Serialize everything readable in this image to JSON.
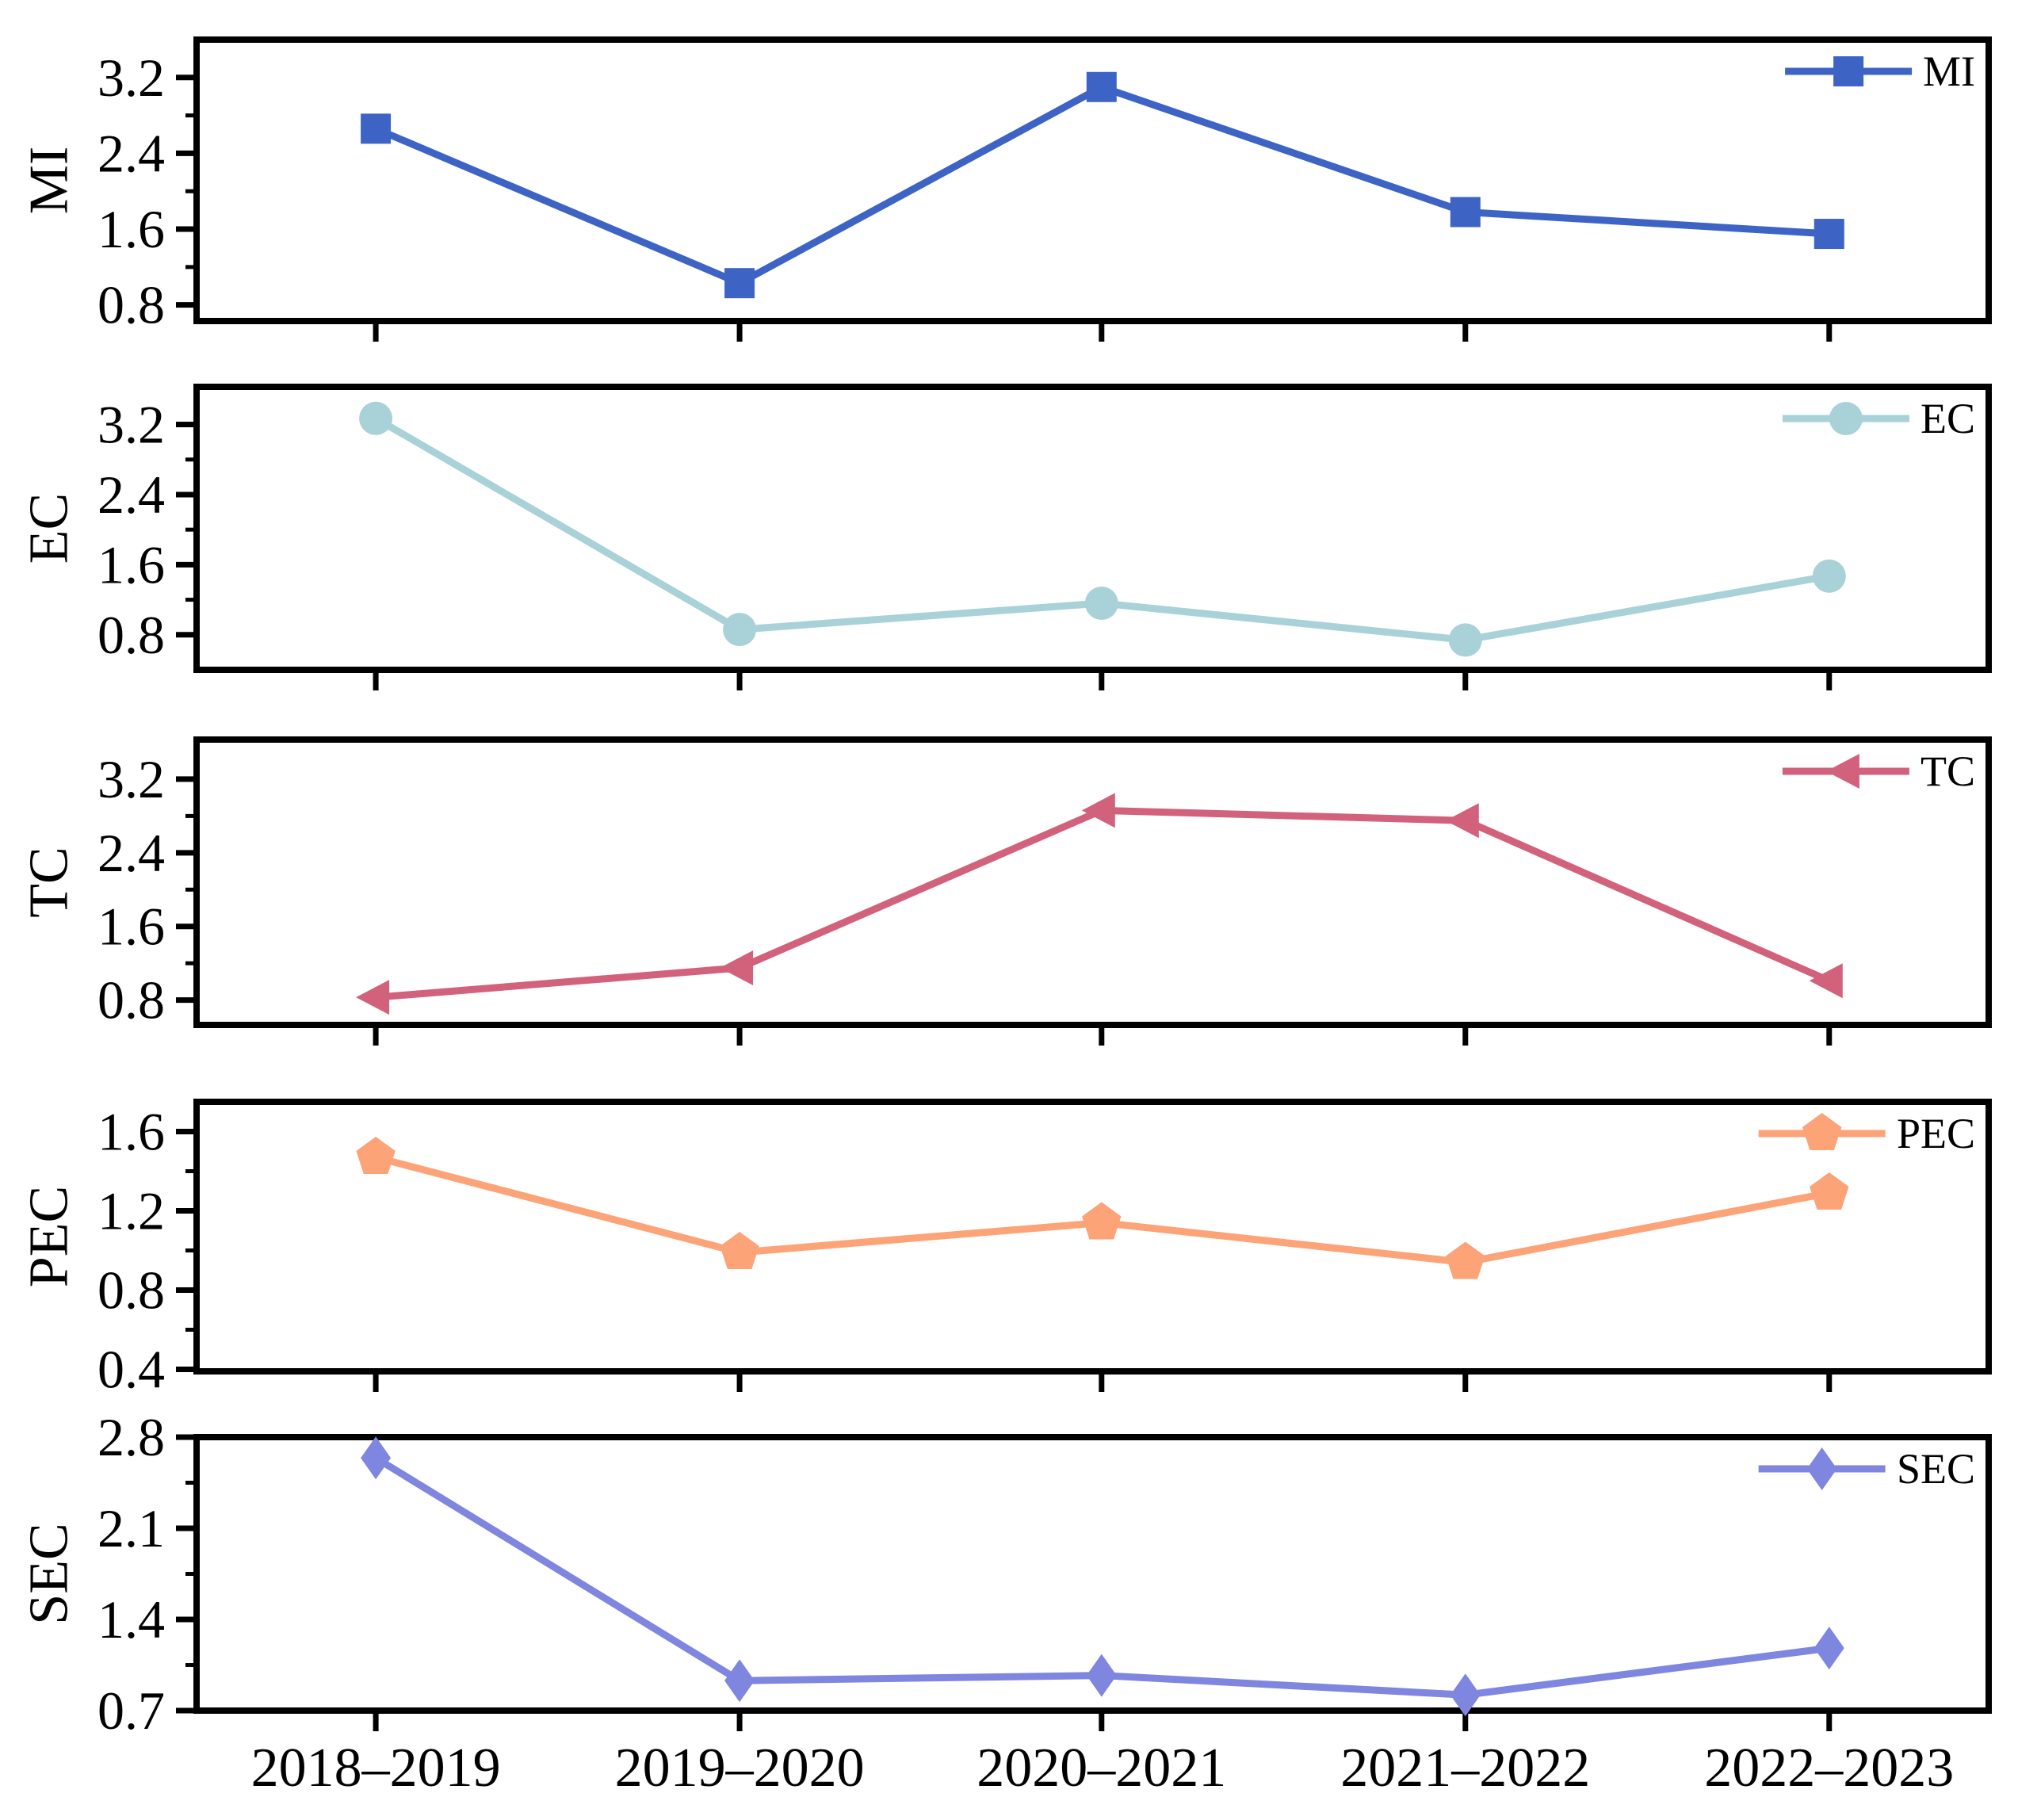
{
  "chart_data": {
    "type": "line",
    "title": "",
    "xlabel": "",
    "x_categories": [
      "2018–2019",
      "2019–2020",
      "2020–2021",
      "2021–2022",
      "2022–2023"
    ],
    "x_tick_labels_shown": "bottom_panel_only",
    "grid": "off",
    "axis_color": "#000000",
    "background_color": "#ffffff",
    "legend_position": "top-right-inside",
    "panels": [
      {
        "name": "MI",
        "ylabel": "MI",
        "legend_label": "MI",
        "marker": "square",
        "color": "#3d63c5",
        "values": [
          2.66,
          1.03,
          3.1,
          1.78,
          1.55
        ],
        "ylim": [
          0.63,
          3.6
        ],
        "yticks": [
          0.8,
          1.6,
          2.4,
          3.2
        ],
        "ytick_labels": [
          "0.8",
          "1.6",
          "2.4",
          "3.2"
        ],
        "yticks_minor": [
          1.2,
          2.0,
          2.8
        ]
      },
      {
        "name": "EC",
        "ylabel": "EC",
        "legend_label": "EC",
        "marker": "circle",
        "color": "#a9d1d8",
        "values": [
          3.27,
          0.86,
          1.16,
          0.74,
          1.47
        ],
        "ylim": [
          0.4,
          3.63
        ],
        "yticks": [
          0.8,
          1.6,
          2.4,
          3.2
        ],
        "ytick_labels": [
          "0.8",
          "1.6",
          "2.4",
          "3.2"
        ],
        "yticks_minor": [
          1.2,
          2.0,
          2.8
        ]
      },
      {
        "name": "TC",
        "ylabel": "TC",
        "legend_label": "TC",
        "marker": "triangle-left",
        "color": "#d2617c",
        "values": [
          0.83,
          1.15,
          2.86,
          2.75,
          1.01
        ],
        "ylim": [
          0.53,
          3.63
        ],
        "yticks": [
          0.8,
          1.6,
          2.4,
          3.2
        ],
        "ytick_labels": [
          "0.8",
          "1.6",
          "2.4",
          "3.2"
        ],
        "yticks_minor": [
          1.2,
          2.0,
          2.8
        ]
      },
      {
        "name": "PEC",
        "ylabel": "PEC",
        "legend_label": "PEC",
        "marker": "pentagon",
        "color": "#fca377",
        "values": [
          1.47,
          0.99,
          1.14,
          0.94,
          1.29
        ],
        "ylim": [
          0.39,
          1.75
        ],
        "yticks": [
          0.4,
          0.8,
          1.2,
          1.6
        ],
        "ytick_labels": [
          "0.4",
          "0.8",
          "1.2",
          "1.6"
        ],
        "yticks_minor": [
          0.6,
          1.0,
          1.4
        ]
      },
      {
        "name": "SEC",
        "ylabel": "SEC",
        "legend_label": "SEC",
        "marker": "diamond",
        "color": "#7f86df",
        "values": [
          2.64,
          0.93,
          0.97,
          0.82,
          1.18
        ],
        "ylim": [
          0.7,
          2.8
        ],
        "yticks": [
          0.7,
          1.4,
          2.1,
          2.8
        ],
        "ytick_labels": [
          "0.7",
          "1.4",
          "2.1",
          "2.8"
        ],
        "yticks_minor": [
          1.05,
          1.75,
          2.45
        ]
      }
    ]
  }
}
